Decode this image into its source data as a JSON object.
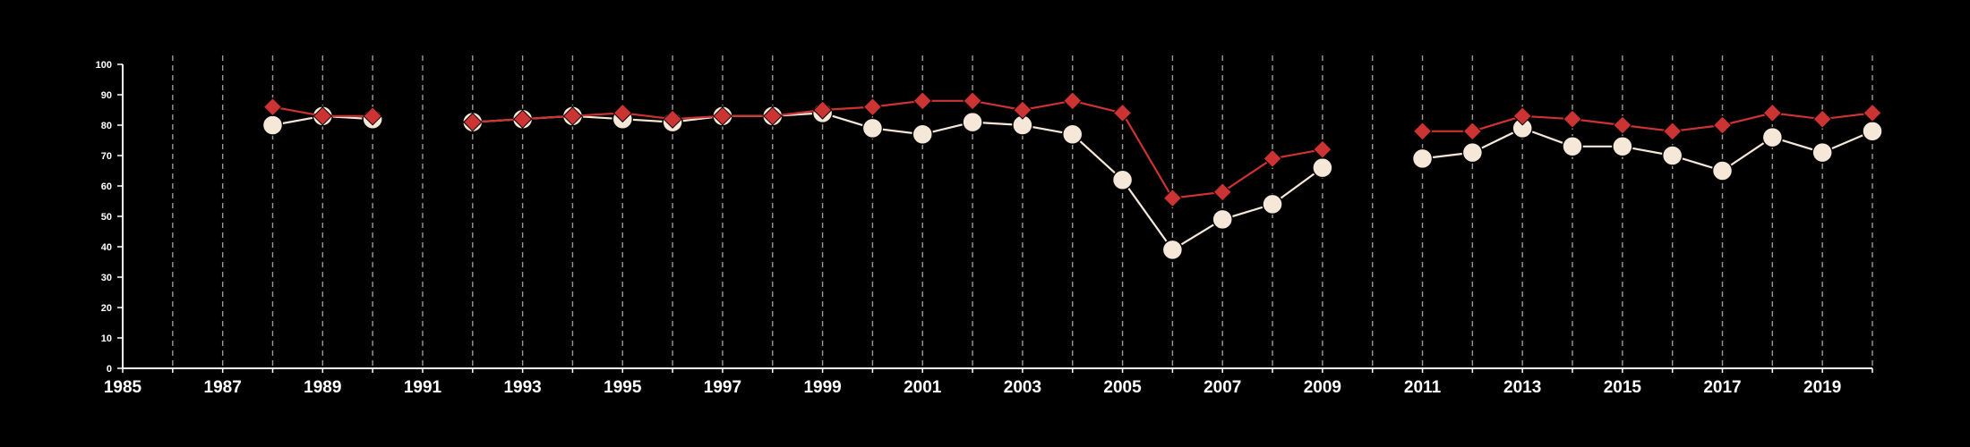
{
  "chart_data": {
    "type": "line",
    "title": "",
    "xlabel": "",
    "ylabel": "",
    "xlim": [
      1985,
      2020
    ],
    "ylim": [
      0,
      100
    ],
    "x_ticks": [
      1985,
      1987,
      1989,
      1991,
      1993,
      1995,
      1997,
      1999,
      2001,
      2003,
      2005,
      2007,
      2009,
      2011,
      2013,
      2015,
      2017,
      2019
    ],
    "y_ticks": [
      0,
      10,
      20,
      30,
      40,
      50,
      60,
      70,
      80,
      90,
      100
    ],
    "grid": "vertical dashed lines at every year",
    "legend": "none",
    "background_color": "#000000",
    "axis_color": "#ffffff",
    "series": [
      {
        "color": "#cc3333",
        "marker": "diamond",
        "points": [
          [
            1988,
            86
          ],
          [
            1989,
            83
          ],
          [
            1990,
            83
          ],
          [
            null,
            null
          ],
          [
            1992,
            81
          ],
          [
            1993,
            82
          ],
          [
            1994,
            83
          ],
          [
            1995,
            84
          ],
          [
            1996,
            82
          ],
          [
            1997,
            83
          ],
          [
            1998,
            83
          ],
          [
            1999,
            85
          ],
          [
            2000,
            86
          ],
          [
            2001,
            88
          ],
          [
            2002,
            88
          ],
          [
            2003,
            85
          ],
          [
            2004,
            88
          ],
          [
            2005,
            84
          ],
          [
            2006,
            56
          ],
          [
            2007,
            58
          ],
          [
            2008,
            69
          ],
          [
            2009,
            72
          ],
          [
            null,
            null
          ],
          [
            2011,
            78
          ],
          [
            2012,
            78
          ],
          [
            2013,
            83
          ],
          [
            2014,
            82
          ],
          [
            2015,
            80
          ],
          [
            2016,
            78
          ],
          [
            2017,
            80
          ],
          [
            2018,
            84
          ],
          [
            2019,
            82
          ],
          [
            2020,
            84
          ]
        ]
      },
      {
        "color": "#f5e8d8",
        "marker": "circle",
        "points": [
          [
            1988,
            80
          ],
          [
            1989,
            83
          ],
          [
            1990,
            82
          ],
          [
            null,
            null
          ],
          [
            1992,
            81
          ],
          [
            1993,
            82
          ],
          [
            1994,
            83
          ],
          [
            1995,
            82
          ],
          [
            1996,
            81
          ],
          [
            1997,
            83
          ],
          [
            1998,
            83
          ],
          [
            1999,
            84
          ],
          [
            2000,
            79
          ],
          [
            2001,
            77
          ],
          [
            2002,
            81
          ],
          [
            2003,
            80
          ],
          [
            2004,
            77
          ],
          [
            2005,
            62
          ],
          [
            2006,
            39
          ],
          [
            2007,
            49
          ],
          [
            2008,
            54
          ],
          [
            2009,
            66
          ],
          [
            null,
            null
          ],
          [
            2011,
            69
          ],
          [
            2012,
            71
          ],
          [
            2013,
            79
          ],
          [
            2014,
            73
          ],
          [
            2015,
            73
          ],
          [
            2016,
            70
          ],
          [
            2017,
            65
          ],
          [
            2018,
            76
          ],
          [
            2019,
            71
          ],
          [
            2020,
            78
          ]
        ]
      }
    ]
  }
}
